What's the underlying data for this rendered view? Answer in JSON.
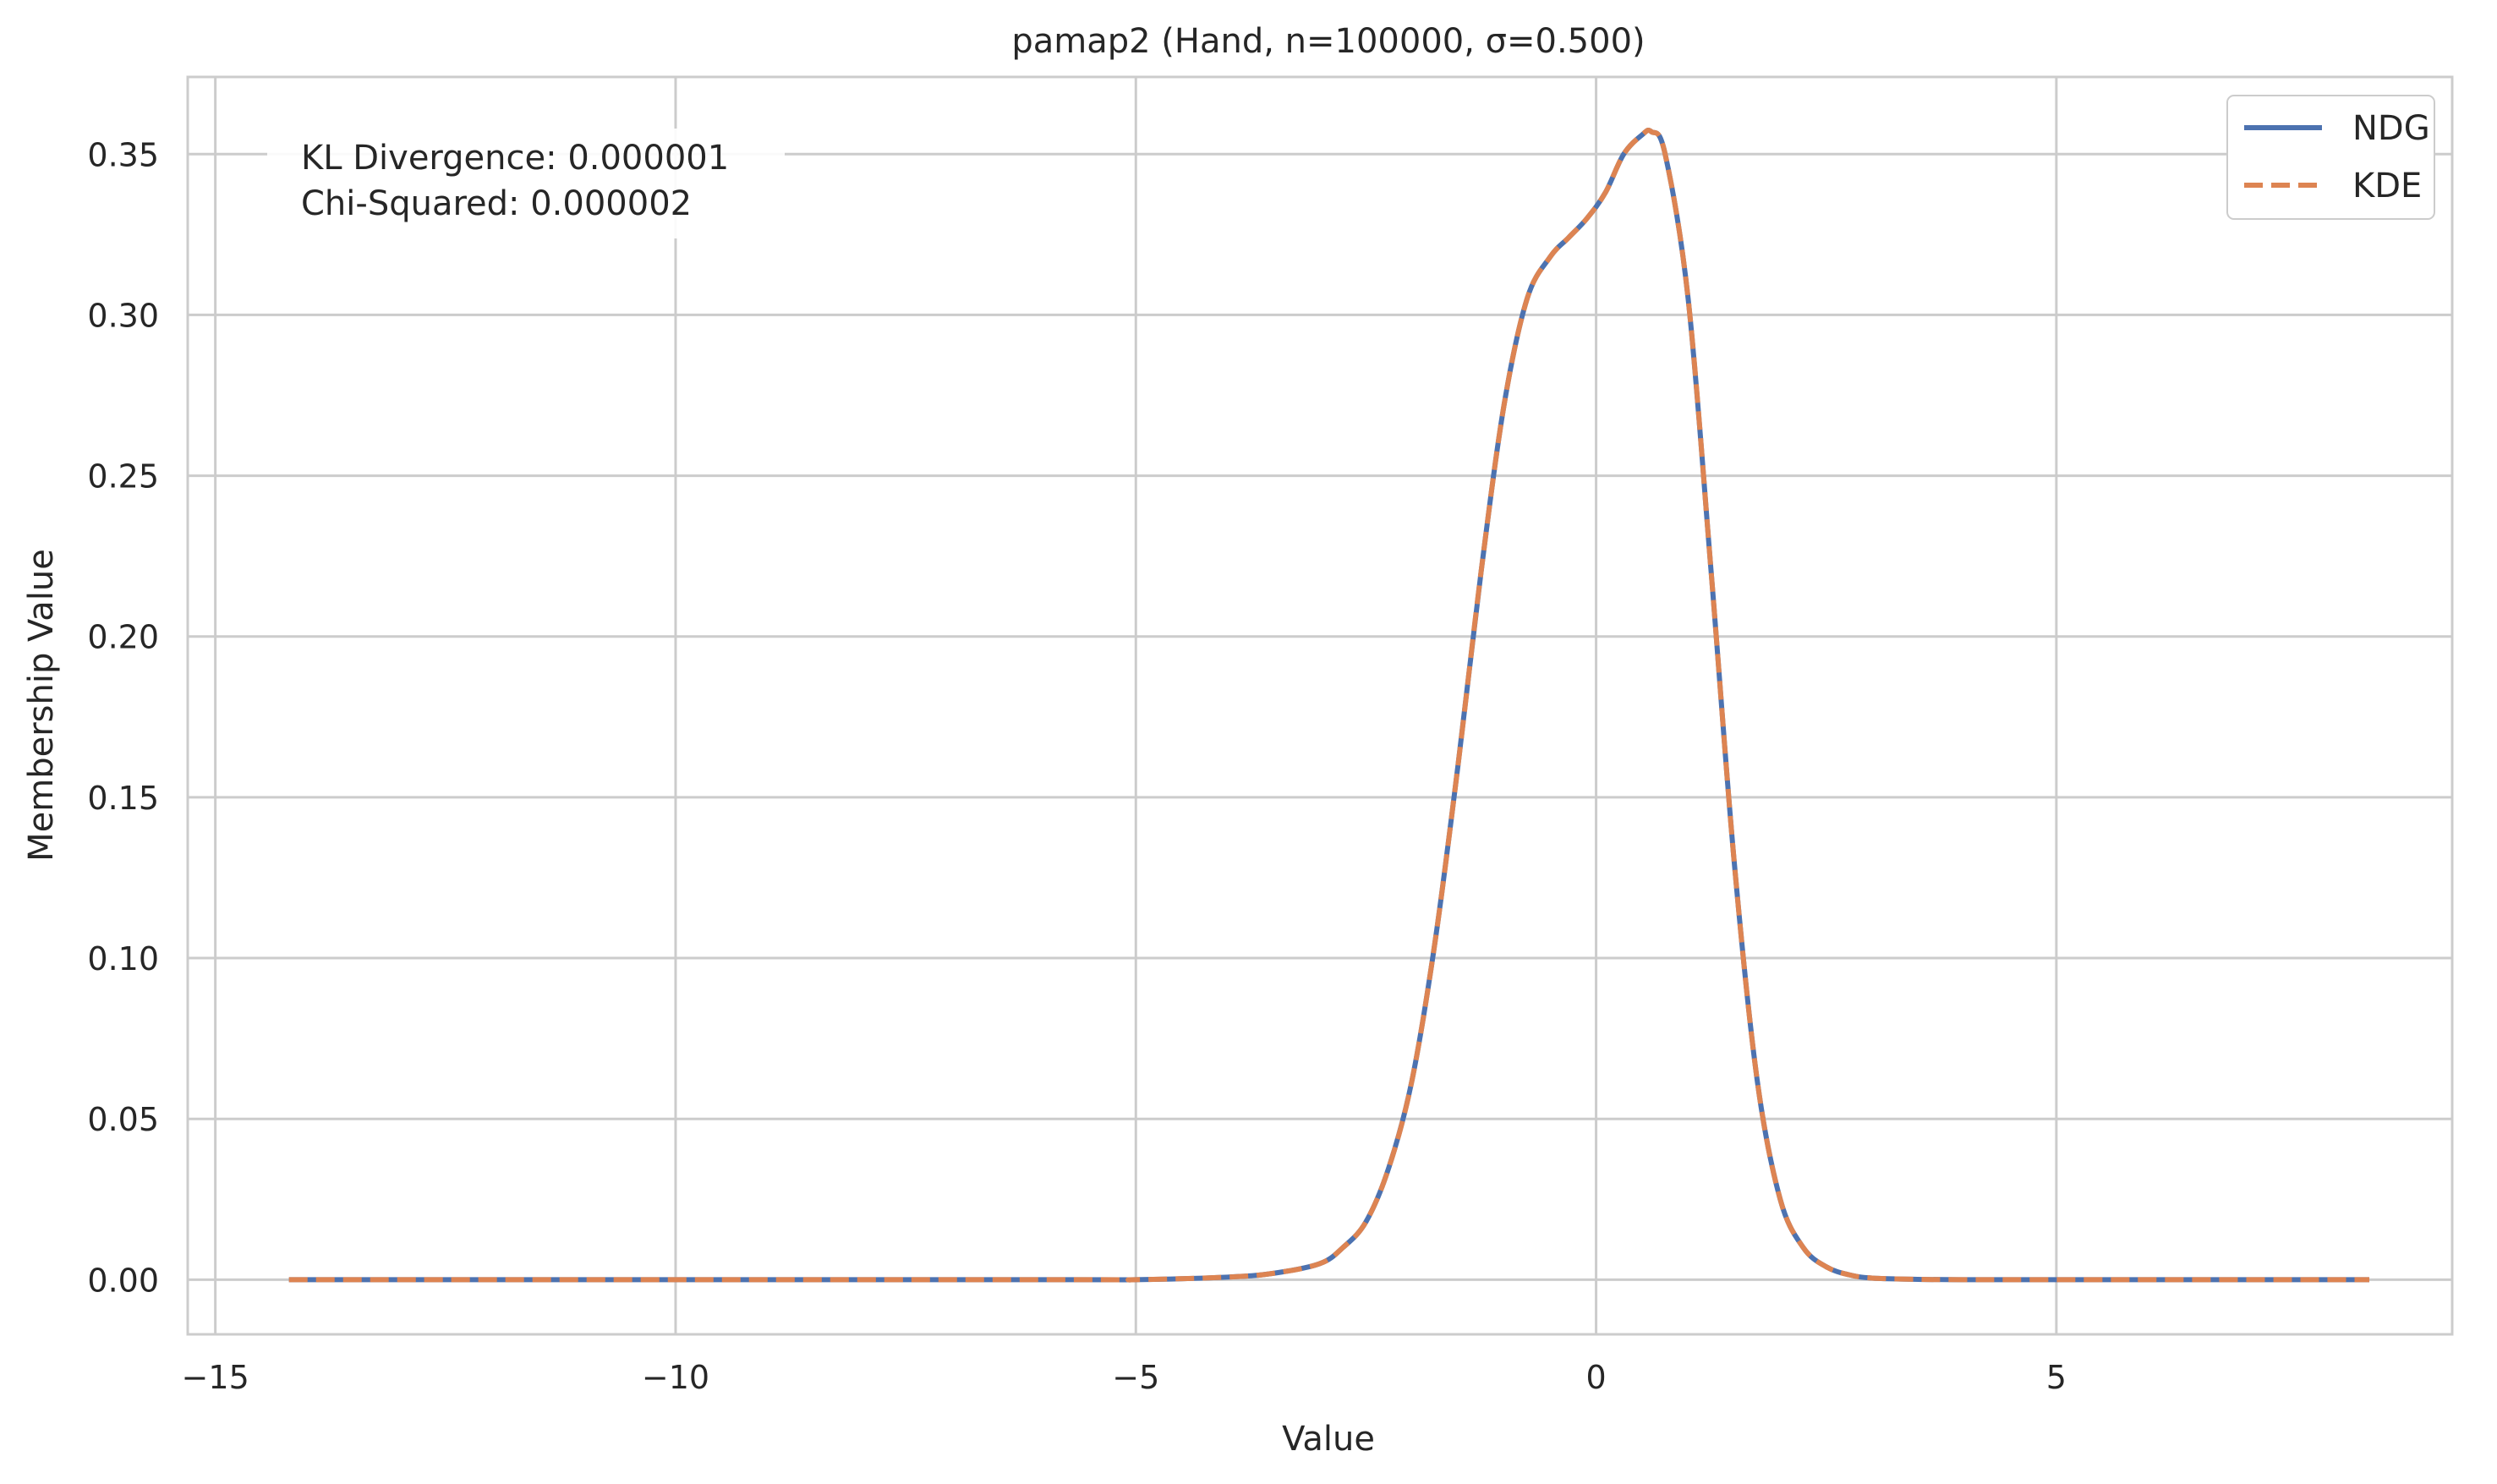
{
  "chart_data": {
    "type": "line",
    "title": "pamap2 (Hand, n=100000, σ=0.500)",
    "xlabel": "Value",
    "ylabel": "Membership Value",
    "xlim": [
      -15.3,
      9.3
    ],
    "ylim": [
      -0.017,
      0.374
    ],
    "xticks": [
      -15,
      -10,
      -5,
      0,
      5
    ],
    "xtick_labels": [
      "−15",
      "−10",
      "−5",
      "0",
      "5"
    ],
    "yticks": [
      0.0,
      0.05,
      0.1,
      0.15,
      0.2,
      0.25,
      0.3,
      0.35
    ],
    "ytick_labels": [
      "0.00",
      "0.05",
      "0.10",
      "0.15",
      "0.20",
      "0.25",
      "0.30",
      "0.35"
    ],
    "grid": true,
    "legend_position": "top-right",
    "annotation": [
      "KL Divergence: 0.000001",
      "Chi-Squared: 0.000002"
    ],
    "x": [
      -14.2,
      -6.0,
      -5.0,
      -4.0,
      -3.5,
      -3.0,
      -2.75,
      -2.5,
      -2.25,
      -2.0,
      -1.75,
      -1.5,
      -1.25,
      -1.0,
      -0.75,
      -0.5,
      -0.3,
      -0.1,
      0.1,
      0.3,
      0.5,
      0.6,
      0.75,
      1.0,
      1.25,
      1.5,
      1.75,
      2.0,
      2.25,
      2.5,
      2.75,
      3.0,
      3.5,
      4.0,
      5.0,
      8.4
    ],
    "series": [
      {
        "name": "NDG",
        "color": "#4c72b0",
        "style": "solid",
        "values": [
          0.0,
          0.0,
          0.0,
          0.0008,
          0.002,
          0.005,
          0.01,
          0.018,
          0.035,
          0.062,
          0.105,
          0.16,
          0.22,
          0.272,
          0.305,
          0.318,
          0.324,
          0.33,
          0.338,
          0.35,
          0.356,
          0.357,
          0.35,
          0.305,
          0.22,
          0.13,
          0.062,
          0.025,
          0.01,
          0.004,
          0.0015,
          0.0005,
          0.0001,
          0.0,
          0.0,
          0.0
        ]
      },
      {
        "name": "KDE",
        "color": "#dd8452",
        "style": "dashed",
        "values": [
          0.0,
          0.0,
          0.0,
          0.0008,
          0.002,
          0.005,
          0.01,
          0.018,
          0.035,
          0.062,
          0.105,
          0.16,
          0.22,
          0.272,
          0.305,
          0.318,
          0.324,
          0.33,
          0.338,
          0.35,
          0.356,
          0.357,
          0.35,
          0.305,
          0.22,
          0.13,
          0.062,
          0.025,
          0.01,
          0.004,
          0.0015,
          0.0005,
          0.0001,
          0.0,
          0.0,
          0.0
        ]
      }
    ]
  }
}
